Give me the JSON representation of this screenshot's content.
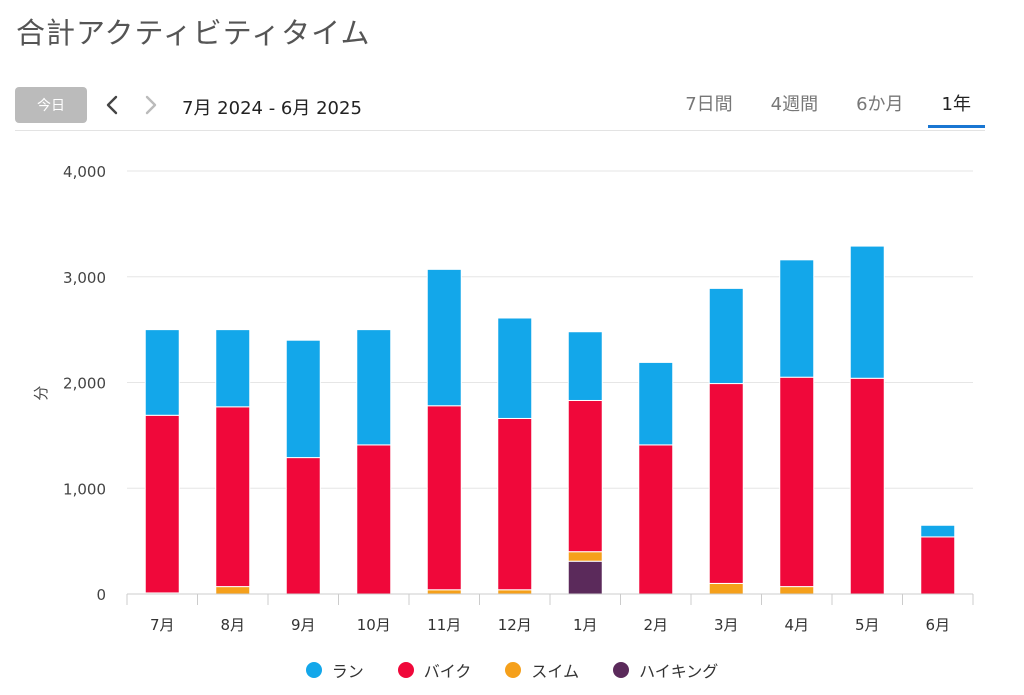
{
  "header": {
    "title": "合計アクティビティタイム"
  },
  "toolbar": {
    "today_label": "今日",
    "prev_icon": "chevron-left-icon",
    "next_icon": "chevron-right-icon",
    "date_range": "7月 2024 - 6月 2025",
    "tabs": [
      {
        "label": "7日間",
        "active": false
      },
      {
        "label": "4週間",
        "active": false
      },
      {
        "label": "6か月",
        "active": false
      },
      {
        "label": "1年",
        "active": true
      }
    ]
  },
  "chart_data": {
    "type": "bar",
    "stacked": true,
    "title": "",
    "xlabel": "",
    "ylabel": "分",
    "ylim": [
      0,
      4000
    ],
    "yticks": [
      0,
      1000,
      2000,
      3000,
      4000
    ],
    "ytick_labels": [
      "0",
      "1,000",
      "2,000",
      "3,000",
      "4,000"
    ],
    "categories": [
      "7月",
      "8月",
      "9月",
      "10月",
      "11月",
      "12月",
      "1月",
      "2月",
      "3月",
      "4月",
      "5月",
      "6月"
    ],
    "series": [
      {
        "name": "ハイキング",
        "color": "#5b2a5b",
        "values": [
          0,
          0,
          0,
          0,
          0,
          0,
          310,
          0,
          0,
          0,
          0,
          0
        ]
      },
      {
        "name": "スイム",
        "color": "#f5a01b",
        "values": [
          10,
          70,
          0,
          0,
          40,
          40,
          90,
          0,
          100,
          70,
          0,
          0
        ]
      },
      {
        "name": "バイク",
        "color": "#f0083a",
        "values": [
          1680,
          1700,
          1290,
          1410,
          1740,
          1620,
          1430,
          1410,
          1890,
          1980,
          2040,
          540
        ]
      },
      {
        "name": "ラン",
        "color": "#13a7ea",
        "values": [
          810,
          730,
          1110,
          1090,
          1290,
          950,
          650,
          780,
          900,
          1110,
          1250,
          110
        ]
      }
    ],
    "legend_order": [
      "ラン",
      "バイク",
      "スイム",
      "ハイキング"
    ],
    "legend_position": "bottom",
    "grid": true
  }
}
